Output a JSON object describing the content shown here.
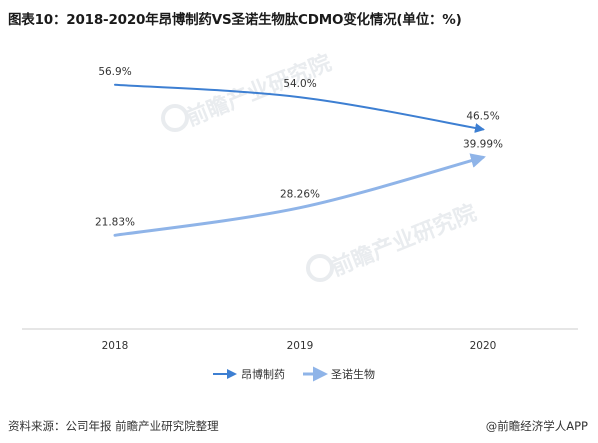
{
  "title": "图表10：2018-2020年昂博制药VS圣诺生物肽CDMO变化情况(单位：%)",
  "source": "资料来源：公司年报 前瞻产业研究院整理",
  "brand": "@前瞻经济学人APP",
  "watermark": "前瞻产业研究院",
  "colors": {
    "angbo": "#3d7fd2",
    "shengnuo": "#8fb4e8",
    "axis": "#cccccc"
  },
  "chart_data": {
    "type": "line",
    "categories": [
      "2018",
      "2019",
      "2020"
    ],
    "series": [
      {
        "name": "昂博制药",
        "values": [
          56.9,
          54.0,
          46.5
        ],
        "labels": [
          "56.9%",
          "54.0%",
          "46.5%"
        ]
      },
      {
        "name": "圣诺生物",
        "values": [
          21.83,
          28.26,
          39.99
        ],
        "labels": [
          "21.83%",
          "28.26%",
          "39.99%"
        ]
      }
    ],
    "ylim": [
      0,
      65
    ],
    "grid": false,
    "legend_position": "bottom"
  }
}
